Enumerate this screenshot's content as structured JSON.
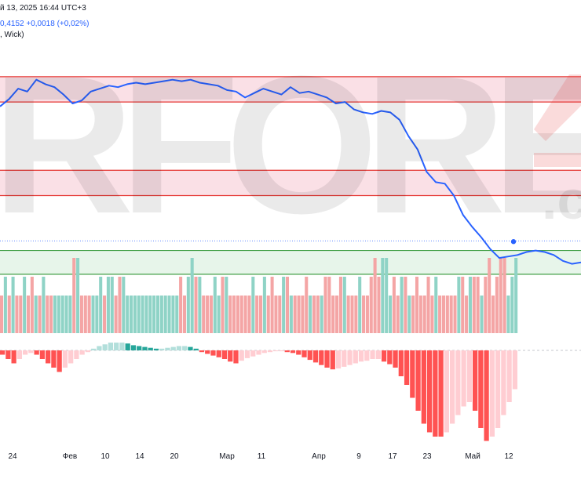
{
  "header": {
    "date_text": "й 13, 2025 16:44 UTC+3",
    "quote_text": "0,4152  +0,0018 (+0,02%)",
    "option_text": ", Wick)"
  },
  "watermark": {
    "text": "RFOREX",
    "suffix": ".c"
  },
  "colors": {
    "line": "#2962ff",
    "resistance_band": "#f8d6dd",
    "resistance_edge": "#e53935",
    "support_band": "#dff2e3",
    "support_edge": "#43a047",
    "vol_up": "#8fd3c6",
    "vol_down": "#f4a5a5",
    "osc_up_strong": "#26a69a",
    "osc_up_weak": "#b2dfdb",
    "osc_down_strong": "#ff5252",
    "osc_down_weak": "#ffcdd2"
  },
  "chart_data": [
    {
      "type": "line",
      "x_ticks": [
        "24",
        "Фев",
        "10",
        "14",
        "20",
        "Мар",
        "11",
        "Апр",
        "9",
        "17",
        "23",
        "Май",
        "12"
      ],
      "series": [
        {
          "values": [
            70,
            70.5,
            71.2,
            71,
            71.8,
            71.5,
            71.3,
            70.8,
            70.2,
            70.4,
            71,
            71.2,
            71.4,
            71.3,
            71.5,
            71.6,
            71.5,
            71.6,
            71.7,
            71.8,
            71.7,
            71.8,
            71.6,
            71.5,
            71.4,
            71.1,
            71,
            70.6,
            70.9,
            71.2,
            71,
            70.8,
            71.3,
            70.9,
            71,
            70.8,
            70.6,
            70.2,
            70.3,
            69.8,
            69.6,
            69.5,
            69.7,
            69.6,
            69.1,
            68,
            67.1,
            65.6,
            64.9,
            64.8,
            64,
            62.7,
            61.9,
            61.2,
            60.4,
            59.8,
            59.9,
            60,
            60.2,
            60.3,
            60.2,
            60,
            59.6,
            59.4,
            59.5
          ]
        }
      ],
      "bands": [
        {
          "kind": "resistance",
          "from": 70.3,
          "to": 72
        },
        {
          "kind": "resistance",
          "from": 64,
          "to": 65.7
        },
        {
          "kind": "support",
          "from": 58.7,
          "to": 60.3
        }
      ],
      "current_value": 60.95,
      "grid": false
    },
    {
      "type": "bar",
      "name_hint": "volume",
      "values": [
        2,
        3,
        2,
        3,
        2,
        2,
        3,
        2,
        3,
        2,
        2,
        3,
        2,
        2,
        2,
        2,
        2,
        2,
        2,
        4,
        4,
        2,
        2,
        2,
        2,
        2,
        3,
        2,
        3,
        3,
        2,
        3,
        3,
        2,
        2,
        2,
        2,
        2,
        2,
        2,
        2,
        2,
        2,
        2,
        2,
        2,
        2,
        3,
        2,
        3,
        4,
        3,
        3,
        2,
        2,
        2,
        3,
        2,
        3,
        3,
        2,
        2,
        2,
        2,
        2,
        2,
        3,
        2,
        2,
        3,
        2,
        3,
        2,
        2,
        3,
        3,
        2,
        2,
        2,
        2,
        3,
        2,
        2,
        2,
        2,
        3,
        3,
        2,
        2,
        3,
        3,
        2,
        2,
        2,
        3,
        2,
        2,
        3,
        4,
        3,
        4,
        4,
        2,
        3,
        2,
        3,
        3,
        2,
        2,
        3,
        2,
        2,
        3,
        2,
        3,
        2,
        2,
        2,
        2,
        2,
        3,
        3,
        2,
        3,
        3,
        3,
        2,
        3,
        4,
        2,
        3,
        4,
        4,
        2,
        3,
        4
      ],
      "directions": [
        0,
        1,
        0,
        1,
        0,
        0,
        1,
        0,
        0,
        1,
        0,
        1,
        0,
        0,
        1,
        1,
        1,
        1,
        1,
        0,
        1,
        0,
        0,
        0,
        1,
        1,
        1,
        0,
        1,
        1,
        0,
        0,
        1,
        1,
        1,
        1,
        1,
        1,
        1,
        1,
        1,
        1,
        1,
        1,
        1,
        1,
        1,
        0,
        0,
        1,
        1,
        0,
        1,
        0,
        0,
        0,
        1,
        1,
        0,
        1,
        0,
        0,
        0,
        0,
        0,
        0,
        1,
        0,
        0,
        1,
        0,
        0,
        0,
        0,
        1,
        0,
        1,
        0,
        0,
        0,
        0,
        1,
        0,
        0,
        1,
        0,
        0,
        0,
        0,
        0,
        1,
        0,
        0,
        0,
        1,
        0,
        0,
        0,
        0,
        0,
        1,
        1,
        1,
        0,
        0,
        1,
        0,
        1,
        0,
        0,
        0,
        0,
        0,
        0,
        1,
        0,
        0,
        0,
        0,
        0,
        1,
        0,
        0,
        1,
        0,
        0,
        1,
        0,
        0,
        0,
        0,
        0,
        0,
        1,
        1,
        1
      ]
    },
    {
      "type": "bar",
      "name_hint": "oscillator",
      "values": [
        -0.5,
        -1,
        -1.5,
        -1,
        -0.5,
        -0.3,
        -0.5,
        -1,
        -1.5,
        -2,
        -2.5,
        -2,
        -1.5,
        -1,
        -0.5,
        -0.2,
        0.2,
        0.5,
        0.7,
        0.9,
        0.9,
        0.9,
        0.8,
        0.6,
        0.5,
        0.4,
        0.3,
        0.2,
        0.2,
        0.3,
        0.4,
        0.5,
        0.5,
        0.4,
        0.2,
        -0.2,
        -0.4,
        -0.6,
        -0.8,
        -1,
        -1.3,
        -1.5,
        -1.2,
        -0.9,
        -0.7,
        -0.5,
        -0.3,
        -0.2,
        -0.1,
        -0.1,
        -0.2,
        -0.3,
        -0.5,
        -0.8,
        -1.1,
        -1.4,
        -1.7,
        -2,
        -2.2,
        -2.1,
        -1.9,
        -1.7,
        -1.5,
        -1.3,
        -1.2,
        -1,
        -1,
        -1.3,
        -1.6,
        -2,
        -3,
        -4,
        -5.5,
        -7,
        -8.5,
        -9.5,
        -10,
        -10,
        -9.5,
        -8.5,
        -7.5,
        -6.5,
        -6,
        -7,
        -9,
        -10.5,
        -10,
        -9,
        -7.5,
        -6,
        -4.5
      ],
      "directions": [
        0,
        0,
        0,
        1,
        1,
        1,
        0,
        0,
        0,
        0,
        0,
        1,
        1,
        1,
        1,
        1,
        1,
        1,
        1,
        1,
        1,
        1,
        0,
        0,
        0,
        0,
        0,
        0,
        1,
        1,
        1,
        1,
        1,
        0,
        0,
        0,
        0,
        0,
        0,
        0,
        0,
        0,
        1,
        1,
        1,
        1,
        1,
        1,
        1,
        1,
        0,
        0,
        0,
        0,
        0,
        0,
        0,
        0,
        0,
        1,
        1,
        1,
        1,
        1,
        1,
        1,
        1,
        0,
        0,
        0,
        0,
        0,
        0,
        0,
        0,
        0,
        0,
        0,
        1,
        1,
        1,
        1,
        1,
        0,
        0,
        0,
        1,
        1,
        1,
        1,
        1
      ]
    }
  ]
}
